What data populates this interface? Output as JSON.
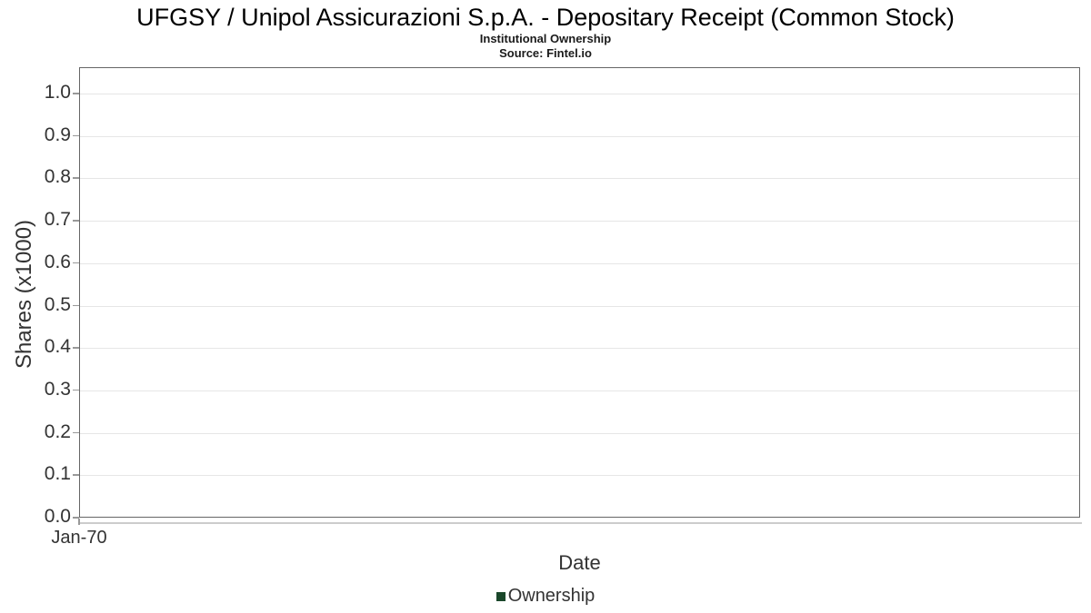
{
  "chart_data": {
    "type": "line",
    "title": "UFGSY / Unipol Assicurazioni S.p.A. - Depositary Receipt (Common Stock)",
    "subtitle": "Institutional Ownership",
    "source": "Source: Fintel.io",
    "xlabel": "Date",
    "ylabel": "Shares (x1000)",
    "x_ticks": [
      "Jan-70"
    ],
    "y_ticks": [
      "0.0",
      "0.1",
      "0.2",
      "0.3",
      "0.4",
      "0.5",
      "0.6",
      "0.7",
      "0.8",
      "0.9",
      "1.0"
    ],
    "ylim": [
      0.0,
      1.06
    ],
    "grid": true,
    "legend_position": "bottom",
    "series": [
      {
        "name": "Ownership",
        "color": "#1a472a",
        "x": [],
        "values": []
      }
    ]
  },
  "colors": {
    "background": "#ffffff",
    "title_text": "#000000",
    "axis_text": "#333333",
    "gridline": "#e6e6e6",
    "plot_border": "#666666",
    "axis_line": "#cccccc",
    "tick": "#999999",
    "legend_marker": "#1a472a"
  }
}
